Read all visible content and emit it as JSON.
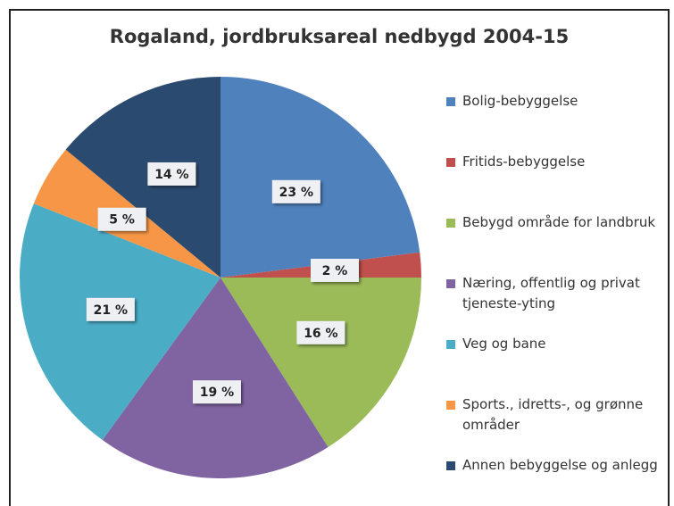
{
  "chart_data": {
    "type": "pie",
    "title": "Rogaland, jordbruksareal  nedbygd 2004-15",
    "categories": [
      "Bolig-bebyggelse",
      "Fritids-bebyggelse",
      "Bebygd område for landbruk",
      "Næring, offentlig og privat tjeneste-yting",
      "Veg og bane",
      "Sports., idretts-, og grønne områder",
      "Annen bebyggelse og anlegg"
    ],
    "values": [
      23,
      2,
      16,
      19,
      21,
      5,
      14
    ],
    "value_labels": [
      "23 %",
      "2 %",
      "16 %",
      "19 %",
      "21 %",
      "5 %",
      "14 %"
    ],
    "colors": [
      "#4f81bd",
      "#c0504d",
      "#9bbb59",
      "#8064a2",
      "#4bacc6",
      "#f79646",
      "#2b4a70"
    ],
    "legend": "right"
  }
}
